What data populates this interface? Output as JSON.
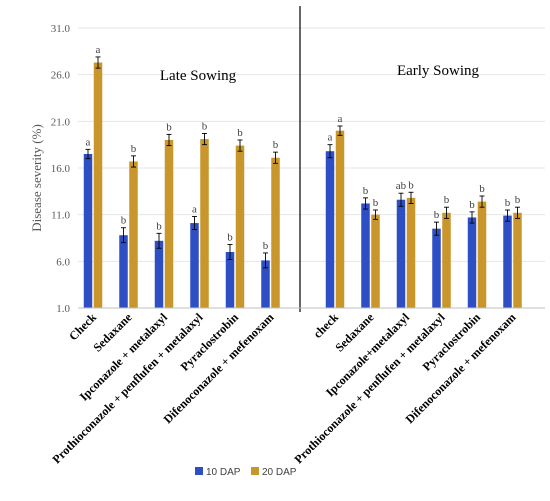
{
  "chart_data": {
    "type": "bar",
    "ylabel": "Disease severity (%)",
    "ylim": [
      1,
      31
    ],
    "yticks": [
      "1.0",
      "6.0",
      "11.0",
      "16.0",
      "21.0",
      "26.0",
      "31.0"
    ],
    "legend_position": "bottom",
    "series": [
      {
        "name": "10 DAP",
        "color": "#2E4FC4"
      },
      {
        "name": "20 DAP",
        "color": "#C9962B"
      }
    ],
    "panels": [
      {
        "label": "Late Sowing",
        "categories": [
          "Check",
          "Sedaxane",
          "Ipconazole + metalaxyl",
          "Prothioconazole + penflufen + metalaxyl",
          "Pyraclostrobin",
          "Difenoconazole + mefenoxam"
        ],
        "values_10dap": [
          17.5,
          8.8,
          8.2,
          10.1,
          7.0,
          6.1
        ],
        "errors_10dap": [
          0.5,
          0.8,
          0.8,
          0.7,
          0.8,
          0.8
        ],
        "values_20dap": [
          27.3,
          16.7,
          19.0,
          19.1,
          18.4,
          17.1
        ],
        "errors_20dap": [
          0.6,
          0.6,
          0.6,
          0.6,
          0.6,
          0.6
        ],
        "letters_10dap": [
          "a",
          "b",
          "b",
          "a",
          "b",
          "b"
        ],
        "letters_20dap": [
          "a",
          "b",
          "b",
          "b",
          "b",
          "b"
        ]
      },
      {
        "label": "Early Sowing",
        "categories": [
          "check",
          "Sedaxane",
          "Ipconazole+metalaxyl",
          "Prothioconazole + penflufen + metalaxyl",
          "Pyraclostrobin",
          "Difenoconazole + mefenoxam"
        ],
        "values_10dap": [
          17.8,
          12.2,
          12.6,
          9.5,
          10.7,
          10.9
        ],
        "errors_10dap": [
          0.7,
          0.6,
          0.7,
          0.7,
          0.6,
          0.6
        ],
        "values_20dap": [
          20.0,
          11.0,
          12.8,
          11.2,
          12.4,
          11.2
        ],
        "errors_20dap": [
          0.5,
          0.5,
          0.6,
          0.6,
          0.6,
          0.6
        ],
        "letters_10dap": [
          "a",
          "b",
          "ab",
          "b",
          "b",
          "b"
        ],
        "letters_20dap": [
          "a",
          "b",
          "b",
          "b",
          "b",
          "b"
        ]
      }
    ]
  }
}
